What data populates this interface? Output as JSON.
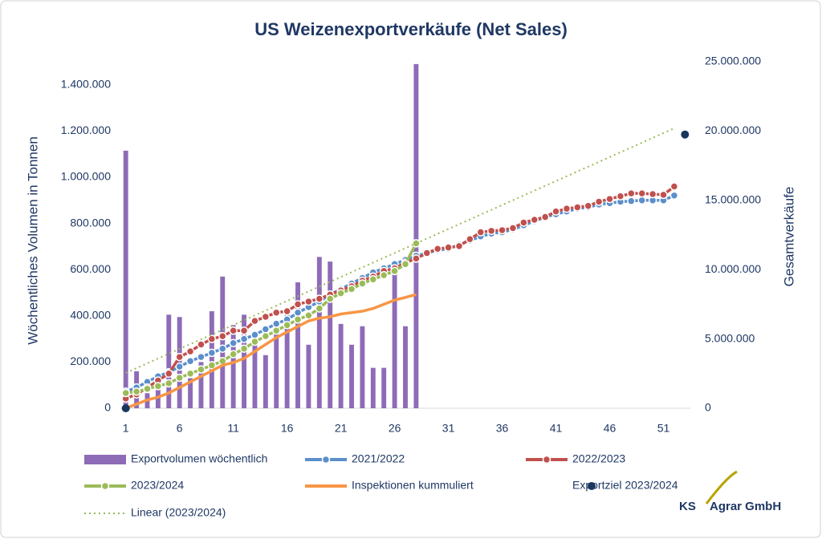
{
  "chart_data": {
    "type": "combo",
    "title": "US Weizenexportverkäufe (Net Sales)",
    "y_label": "Wöchentliches Volumen in Tonnen",
    "y2_label": "Gesamtverkäufe",
    "xlim": [
      0.5,
      53.5
    ],
    "xticks": [
      1,
      6,
      11,
      16,
      21,
      26,
      31,
      36,
      41,
      46,
      51
    ],
    "ylim": [
      0,
      1500000
    ],
    "yticks": [
      {
        "value": 0,
        "label": "0"
      },
      {
        "value": 200000,
        "label": "200.000"
      },
      {
        "value": 400000,
        "label": "400.000"
      },
      {
        "value": 600000,
        "label": "600.000"
      },
      {
        "value": 800000,
        "label": "800.000"
      },
      {
        "value": 1000000,
        "label": "1.000.000"
      },
      {
        "value": 1200000,
        "label": "1.200.000"
      },
      {
        "value": 1400000,
        "label": "1.400.000"
      }
    ],
    "y2lim": [
      0,
      25000000
    ],
    "y2ticks": [
      {
        "value": 0,
        "label": "0"
      },
      {
        "value": 5000000,
        "label": "5.000.000"
      },
      {
        "value": 10000000,
        "label": "10.000.000"
      },
      {
        "value": 15000000,
        "label": "15.000.000"
      },
      {
        "value": 20000000,
        "label": "20.000.000"
      },
      {
        "value": 25000000,
        "label": "25.000.000"
      }
    ],
    "series": [
      {
        "name": "Exportvolumen wöchentlich",
        "kind": "bar",
        "color": "#8e6bb7",
        "x": [
          1,
          2,
          3,
          4,
          5,
          6,
          7,
          8,
          9,
          10,
          11,
          12,
          13,
          14,
          15,
          16,
          17,
          18,
          19,
          20,
          21,
          22,
          23,
          24,
          25,
          26,
          27,
          28
        ],
        "values": [
          1115000,
          160000,
          65000,
          95000,
          405000,
          395000,
          130000,
          200000,
          420000,
          570000,
          360000,
          405000,
          300000,
          230000,
          380000,
          430000,
          545000,
          275000,
          655000,
          635000,
          365000,
          275000,
          355000,
          175000,
          175000,
          590000,
          355000,
          1490000
        ]
      },
      {
        "name": "2021/2022",
        "kind": "line",
        "marker": true,
        "axis": "y2",
        "color": "#5b8fcb",
        "x": [
          1,
          2,
          3,
          4,
          5,
          6,
          7,
          8,
          9,
          10,
          11,
          12,
          13,
          14,
          15,
          16,
          17,
          18,
          19,
          20,
          21,
          22,
          23,
          24,
          25,
          26,
          27,
          28,
          29,
          30,
          31,
          32,
          33,
          34,
          35,
          36,
          37,
          38,
          39,
          40,
          41,
          42,
          43,
          44,
          45,
          46,
          47,
          48,
          49,
          50,
          51,
          52
        ],
        "values": [
          1200000,
          1500000,
          1900000,
          2300000,
          2600000,
          3000000,
          3400000,
          3700000,
          4000000,
          4300000,
          4700000,
          5000000,
          5300000,
          5700000,
          6100000,
          6400000,
          6900000,
          7300000,
          7700000,
          8200000,
          8600000,
          9000000,
          9400000,
          9800000,
          10100000,
          10400000,
          10700000,
          11000000,
          11200000,
          11400000,
          11500000,
          11800000,
          12100000,
          12400000,
          12600000,
          12700000,
          12900000,
          13200000,
          13500000,
          13800000,
          14000000,
          14200000,
          14400000,
          14500000,
          14700000,
          14800000,
          14900000,
          14950000,
          15000000,
          15000000,
          15000000,
          15350000
        ]
      },
      {
        "name": "2022/2023",
        "kind": "line",
        "marker": true,
        "axis": "y2",
        "color": "#c0504d",
        "x": [
          1,
          2,
          3,
          4,
          5,
          6,
          7,
          8,
          9,
          10,
          11,
          12,
          13,
          14,
          15,
          16,
          17,
          18,
          19,
          20,
          21,
          22,
          23,
          24,
          25,
          26,
          27,
          28,
          29,
          30,
          31,
          32,
          33,
          34,
          35,
          36,
          37,
          38,
          39,
          40,
          41,
          42,
          43,
          44,
          45,
          46,
          47,
          48,
          49,
          50,
          51,
          52
        ],
        "values": [
          700000,
          1000000,
          1500000,
          2000000,
          2500000,
          3700000,
          4100000,
          4600000,
          5000000,
          5200000,
          5600000,
          5600000,
          6300000,
          6600000,
          6900000,
          7000000,
          7500000,
          7700000,
          7900000,
          8200000,
          8500000,
          8800000,
          9200000,
          9500000,
          9900000,
          10100000,
          10500000,
          10800000,
          11200000,
          11500000,
          11600000,
          11700000,
          12200000,
          12700000,
          12800000,
          12850000,
          13000000,
          13400000,
          13600000,
          13800000,
          14200000,
          14400000,
          14500000,
          14600000,
          14900000,
          15100000,
          15300000,
          15500000,
          15500000,
          15450000,
          15400000,
          16000000
        ]
      },
      {
        "name": "2023/2024",
        "kind": "line",
        "marker": true,
        "axis": "y2",
        "color": "#9bbb59",
        "x": [
          1,
          2,
          3,
          4,
          5,
          6,
          7,
          8,
          9,
          10,
          11,
          12,
          13,
          14,
          15,
          16,
          17,
          18,
          19,
          20,
          21,
          22,
          23,
          24,
          25,
          26,
          27,
          28
        ],
        "values": [
          1100000,
          1200000,
          1400000,
          1600000,
          1800000,
          2200000,
          2500000,
          2800000,
          3100000,
          3400000,
          3900000,
          4300000,
          4800000,
          5200000,
          5600000,
          6000000,
          6400000,
          6700000,
          7200000,
          7900000,
          8300000,
          8600000,
          9000000,
          9300000,
          9600000,
          9900000,
          10400000,
          11900000
        ]
      },
      {
        "name": "Inspektionen kummuliert",
        "kind": "line",
        "marker": false,
        "axis": "y2",
        "color": "#f79646",
        "x": [
          1,
          2,
          3,
          4,
          5,
          6,
          7,
          8,
          9,
          10,
          11,
          12,
          13,
          14,
          15,
          16,
          17,
          18,
          19,
          20,
          21,
          22,
          23,
          24,
          25,
          26,
          27,
          28
        ],
        "values": [
          0,
          300000,
          600000,
          800000,
          1100000,
          1500000,
          1900000,
          2300000,
          2700000,
          3100000,
          3300000,
          3600000,
          4100000,
          4600000,
          5100000,
          5500000,
          5900000,
          6300000,
          6500000,
          6600000,
          6800000,
          6900000,
          7000000,
          7200000,
          7500000,
          7800000,
          8000000,
          8200000
        ]
      },
      {
        "name": "Exportziel 2023/2024",
        "kind": "scatter",
        "axis": "y2",
        "color": "#17375e",
        "x": [
          1,
          53
        ],
        "values": [
          0,
          19750000
        ]
      },
      {
        "name": "Linear (2023/2024)",
        "kind": "trend",
        "axis": "y2",
        "color": "#9bbb59",
        "x": [
          1,
          52
        ],
        "values": [
          2550000,
          20200000
        ]
      }
    ],
    "logo": {
      "left": "KS",
      "right": "Agrar GmbH"
    }
  }
}
